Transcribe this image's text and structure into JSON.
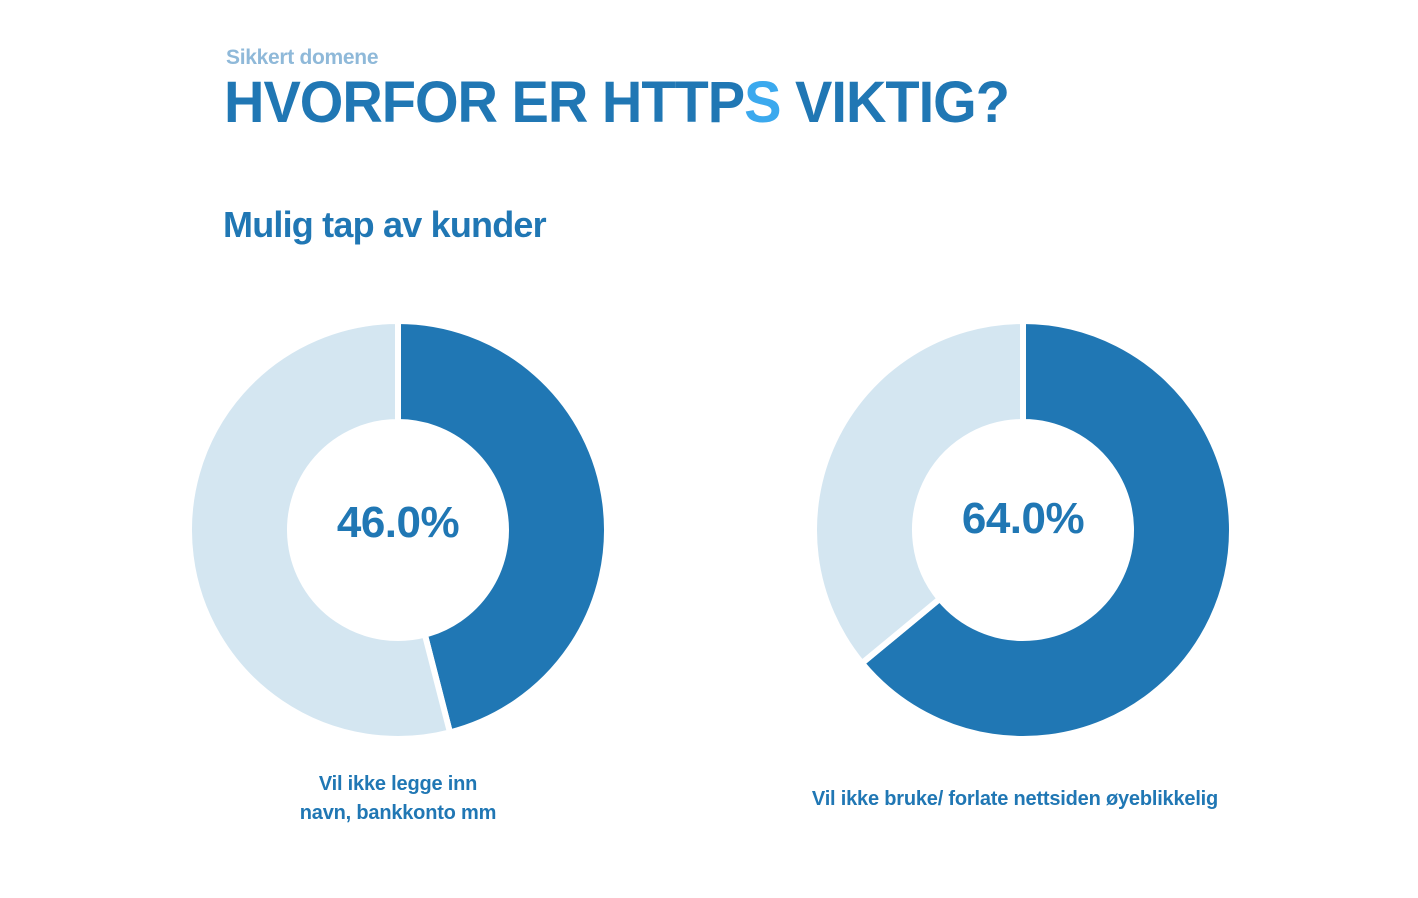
{
  "header": {
    "eyebrow": "Sikkert domene",
    "title_part1": "HVORFOR ER HTTP",
    "title_accent": "S",
    "title_part2": " VIKTIG?"
  },
  "colors": {
    "primary": "#2077b4",
    "light": "#d4e6f1",
    "accent": "#3ba9ee",
    "eyebrow": "#8fb9d9"
  },
  "chart_data": [
    {
      "type": "pie",
      "title": "Mulig tap av kunder",
      "center_label": "46.0%",
      "caption_line1": "Vil ikke legge inn",
      "caption_line2": "navn, bankkonto mm",
      "slices": [
        {
          "value": 46.0,
          "color": "#2077b4"
        },
        {
          "value": 54.0,
          "color": "#d4e6f1"
        }
      ]
    },
    {
      "type": "pie",
      "title": "Mulig tap av kunder",
      "center_label": "64.0%",
      "caption": "Vil ikke bruke/ forlate nettsiden øyeblikkelig",
      "slices": [
        {
          "value": 64.0,
          "color": "#2077b4"
        },
        {
          "value": 36.0,
          "color": "#d4e6f1"
        }
      ]
    }
  ]
}
